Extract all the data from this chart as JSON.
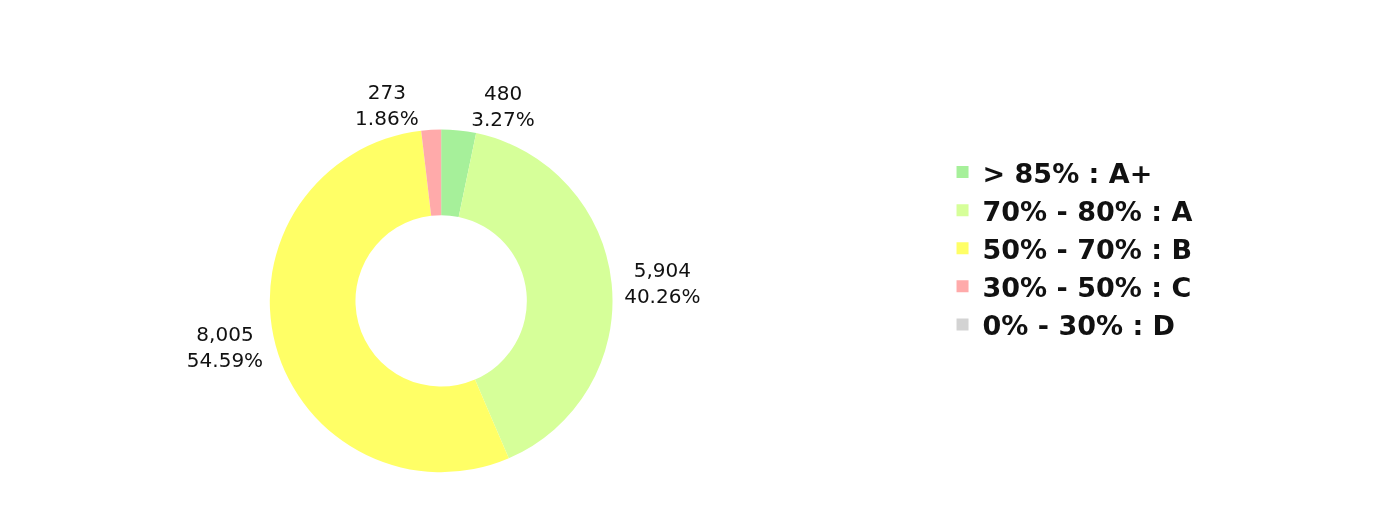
{
  "chart_data": {
    "type": "donut",
    "categories": [
      "> 85% : A+",
      "70% - 80% : A",
      "50% - 70% : B",
      "30% - 50% : C",
      "0% - 30% : D"
    ],
    "values": [
      480,
      5904,
      8005,
      273,
      0
    ],
    "colors": [
      "#a6f09a",
      "#d6ff99",
      "#ffff66",
      "#ffaaaa",
      "#d3d3d3"
    ],
    "value_labels": [
      "480\n3.27%",
      "5,904\n40.26%",
      "8,005\n54.59%",
      "273\n1.86%",
      null
    ],
    "legend": "right"
  }
}
